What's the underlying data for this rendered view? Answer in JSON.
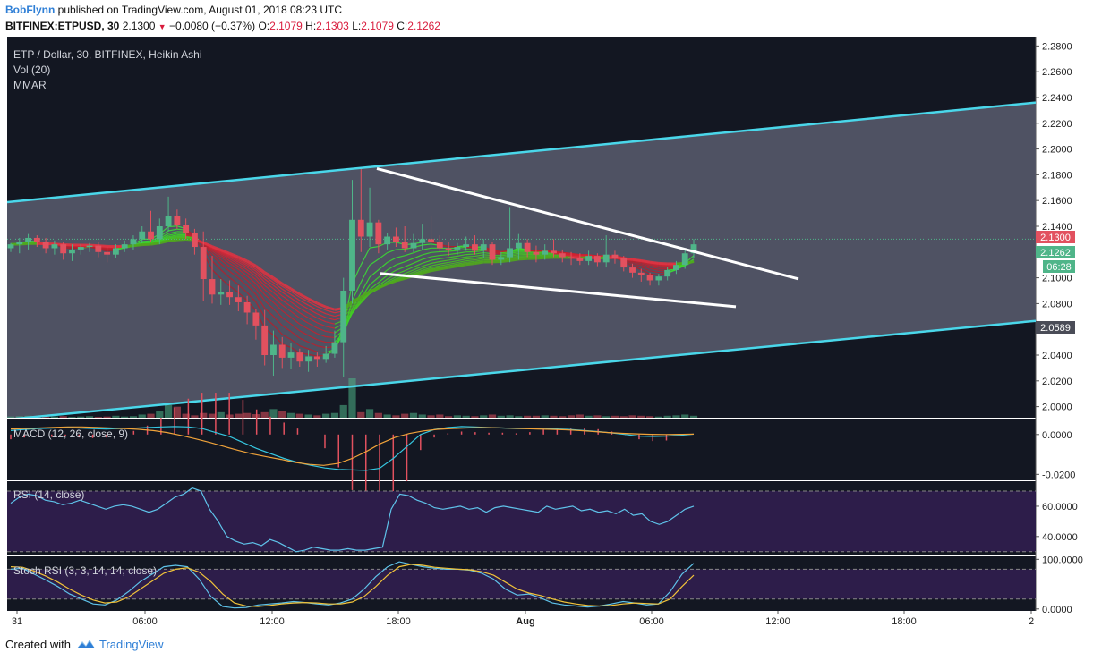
{
  "header": {
    "author": "BobFlynn",
    "published_text": "published on TradingView.com, August 01, 2018 08:23 UTC",
    "symbol_line": "BITFINEX:ETPUSD, 30",
    "last": "2.1300",
    "change": "−0.0080 (−0.37%)",
    "o_label": "O:",
    "o": "2.1079",
    "h_label": "H:",
    "h": "2.1303",
    "l_label": "L:",
    "l": "2.1079",
    "c_label": "C:",
    "c": "2.1262"
  },
  "legend": {
    "main": "ETP / Dollar, 30, BITFINEX, Heikin Ashi",
    "vol": "Vol (20)",
    "mmar": "MMAR",
    "macd": "MACD (12, 26, close, 9)",
    "rsi": "RSI (14, close)",
    "stoch": "Stoch RSI (3, 3, 14, 14, close)"
  },
  "price_badges": {
    "last": "2.1300",
    "close": "2.1262",
    "countdown": "06:28",
    "low": "2.0589"
  },
  "footer": {
    "created_with": "Created with",
    "brand": "TradingView"
  },
  "colors": {
    "bg": "#131722",
    "channel": "#4ad7ea",
    "channel_fill": "#5b5d6e",
    "up": "#4fb589",
    "down": "#e2515f",
    "trend": "#ffffff",
    "macd": "#36c6df",
    "signal": "#f0a33a",
    "rsi": "#5fc3ea",
    "stoch_k": "#5fc3ea",
    "stoch_d": "#f0c23a",
    "rsi_band": "#2d1d4a"
  },
  "chart_data": [
    {
      "type": "candlestick",
      "title": "ETP / Dollar, 30, BITFINEX, Heikin Ashi",
      "x_tick_labels": [
        "31",
        "06:00",
        "12:00",
        "18:00",
        "Aug",
        "06:00",
        "12:00",
        "18:00",
        "2"
      ],
      "y_tick_labels": [
        "2.0000",
        "2.0200",
        "2.0400",
        "2.0800",
        "2.1000",
        "2.1400",
        "2.1600",
        "2.1800",
        "2.2000",
        "2.2200",
        "2.2400",
        "2.2600",
        "2.2800"
      ],
      "ylim": [
        1.9914,
        2.2872
      ],
      "candles": [
        [
          2.123,
          2.127,
          2.12,
          2.126
        ],
        [
          2.126,
          2.131,
          2.119,
          2.128
        ],
        [
          2.128,
          2.134,
          2.122,
          2.131
        ],
        [
          2.131,
          2.133,
          2.124,
          2.128
        ],
        [
          2.128,
          2.131,
          2.119,
          2.123
        ],
        [
          2.123,
          2.129,
          2.118,
          2.126
        ],
        [
          2.126,
          2.128,
          2.114,
          2.119
        ],
        [
          2.119,
          2.126,
          2.113,
          2.122
        ],
        [
          2.122,
          2.126,
          2.118,
          2.124
        ],
        [
          2.124,
          2.127,
          2.12,
          2.125
        ],
        [
          2.125,
          2.128,
          2.116,
          2.12
        ],
        [
          2.12,
          2.124,
          2.112,
          2.118
        ],
        [
          2.118,
          2.126,
          2.115,
          2.123
        ],
        [
          2.123,
          2.129,
          2.12,
          2.126
        ],
        [
          2.126,
          2.133,
          2.122,
          2.13
        ],
        [
          2.13,
          2.14,
          2.127,
          2.136
        ],
        [
          2.136,
          2.152,
          2.128,
          2.13
        ],
        [
          2.13,
          2.146,
          2.126,
          2.14
        ],
        [
          2.14,
          2.163,
          2.136,
          2.148
        ],
        [
          2.148,
          2.153,
          2.138,
          2.141
        ],
        [
          2.141,
          2.146,
          2.13,
          2.135
        ],
        [
          2.135,
          2.138,
          2.118,
          2.124
        ],
        [
          2.124,
          2.136,
          2.082,
          2.099
        ],
        [
          2.099,
          2.117,
          2.08,
          2.087
        ],
        [
          2.087,
          2.099,
          2.079,
          2.089
        ],
        [
          2.089,
          2.098,
          2.079,
          2.085
        ],
        [
          2.085,
          2.094,
          2.074,
          2.081
        ],
        [
          2.081,
          2.086,
          2.064,
          2.073
        ],
        [
          2.073,
          2.076,
          2.052,
          2.063
        ],
        [
          2.063,
          2.075,
          2.032,
          2.04
        ],
        [
          2.04,
          2.059,
          2.024,
          2.048
        ],
        [
          2.048,
          2.054,
          2.03,
          2.038
        ],
        [
          2.038,
          2.049,
          2.029,
          2.042
        ],
        [
          2.042,
          2.045,
          2.031,
          2.035
        ],
        [
          2.035,
          2.044,
          2.027,
          2.039
        ],
        [
          2.039,
          2.042,
          2.031,
          2.037
        ],
        [
          2.037,
          2.047,
          2.034,
          2.041
        ],
        [
          2.041,
          2.059,
          2.038,
          2.05
        ],
        [
          2.05,
          2.1,
          2.023,
          2.09
        ],
        [
          2.09,
          2.176,
          2.08,
          2.145
        ],
        [
          2.145,
          2.185,
          2.12,
          2.132
        ],
        [
          2.132,
          2.17,
          2.124,
          2.143
        ],
        [
          2.143,
          2.145,
          2.119,
          2.126
        ],
        [
          2.126,
          2.135,
          2.122,
          2.132
        ],
        [
          2.132,
          2.139,
          2.124,
          2.128
        ],
        [
          2.128,
          2.14,
          2.12,
          2.123
        ],
        [
          2.123,
          2.134,
          2.12,
          2.127
        ],
        [
          2.127,
          2.142,
          2.122,
          2.13
        ],
        [
          2.13,
          2.148,
          2.124,
          2.128
        ],
        [
          2.128,
          2.133,
          2.12,
          2.123
        ],
        [
          2.123,
          2.128,
          2.117,
          2.122
        ],
        [
          2.122,
          2.127,
          2.118,
          2.124
        ],
        [
          2.124,
          2.132,
          2.121,
          2.126
        ],
        [
          2.126,
          2.133,
          2.118,
          2.121
        ],
        [
          2.121,
          2.13,
          2.115,
          2.126
        ],
        [
          2.126,
          2.128,
          2.11,
          2.114
        ],
        [
          2.114,
          2.12,
          2.11,
          2.116
        ],
        [
          2.116,
          2.155,
          2.112,
          2.123
        ],
        [
          2.123,
          2.134,
          2.114,
          2.127
        ],
        [
          2.127,
          2.13,
          2.116,
          2.12
        ],
        [
          2.12,
          2.125,
          2.112,
          2.118
        ],
        [
          2.118,
          2.126,
          2.114,
          2.121
        ],
        [
          2.121,
          2.13,
          2.116,
          2.119
        ],
        [
          2.119,
          2.122,
          2.112,
          2.116
        ],
        [
          2.116,
          2.12,
          2.11,
          2.115
        ],
        [
          2.115,
          2.119,
          2.11,
          2.113
        ],
        [
          2.113,
          2.121,
          2.11,
          2.117
        ],
        [
          2.117,
          2.119,
          2.109,
          2.112
        ],
        [
          2.112,
          2.133,
          2.108,
          2.118
        ],
        [
          2.118,
          2.121,
          2.111,
          2.115
        ],
        [
          2.115,
          2.117,
          2.105,
          2.108
        ],
        [
          2.108,
          2.111,
          2.1,
          2.104
        ],
        [
          2.104,
          2.107,
          2.097,
          2.102
        ],
        [
          2.102,
          2.104,
          2.094,
          2.098
        ],
        [
          2.098,
          2.103,
          2.094,
          2.101
        ],
        [
          2.101,
          2.108,
          2.098,
          2.106
        ],
        [
          2.106,
          2.113,
          2.103,
          2.11
        ],
        [
          2.11,
          2.122,
          2.107,
          2.119
        ],
        [
          2.119,
          2.13,
          2.115,
          2.126
        ]
      ],
      "volume": [
        3,
        4,
        5,
        3,
        2,
        3,
        4,
        2,
        3,
        4,
        2,
        3,
        5,
        3,
        4,
        8,
        10,
        16,
        32,
        28,
        10,
        6,
        12,
        10,
        14,
        8,
        10,
        12,
        9,
        14,
        22,
        18,
        12,
        10,
        8,
        6,
        10,
        12,
        32,
        100,
        14,
        22,
        12,
        8,
        6,
        10,
        12,
        8,
        6,
        8,
        4,
        6,
        5,
        4,
        6,
        8,
        5,
        6,
        4,
        5,
        5,
        6,
        5,
        4,
        6,
        8,
        5,
        6,
        4,
        5,
        4,
        6,
        5,
        4,
        3,
        5,
        6,
        8,
        5
      ],
      "channel_top": [
        [
          2.1587,
          2.2361
        ]
      ],
      "channel_bottom": [
        [
          1.99,
          2.0666
        ]
      ],
      "wedge_upper": [
        2.1848,
        2.0991
      ],
      "wedge_lower": [
        2.1034,
        2.0776
      ]
    },
    {
      "type": "line",
      "title": "MACD (12, 26, close, 9)",
      "y_tick_labels": [
        "0.0000",
        "-0.0200"
      ],
      "ylim": [
        -0.023,
        0.008
      ],
      "series": [
        {
          "name": "MACD",
          "values": [
            0.002,
            0.0025,
            0.003,
            0.0032,
            0.0035,
            0.0033,
            0.003,
            0.0028,
            0.003,
            0.0032,
            0.0035,
            0.0038,
            0.004,
            0.0038,
            0.003,
            0.001,
            -0.001,
            -0.004,
            -0.007,
            -0.0095,
            -0.012,
            -0.014,
            -0.0155,
            -0.0168,
            -0.0175,
            -0.0178,
            -0.018,
            -0.017,
            -0.012,
            -0.006,
            0.0,
            0.0025,
            0.0035,
            0.004,
            0.0038,
            0.0035,
            0.0033,
            0.003,
            0.003,
            0.0032,
            0.0028,
            0.0025,
            0.002,
            0.0015,
            0.0008,
            0.0,
            -0.0008,
            -0.001,
            -0.0008,
            -0.0004,
            0.0002
          ]
        },
        {
          "name": "Signal",
          "values": [
            0.0028,
            0.003,
            0.0033,
            0.0036,
            0.0038,
            0.0038,
            0.0036,
            0.0033,
            0.003,
            0.0026,
            0.002,
            0.001,
            -0.0005,
            -0.0022,
            -0.004,
            -0.006,
            -0.008,
            -0.0098,
            -0.0112,
            -0.0125,
            -0.014,
            -0.015,
            -0.0155,
            -0.0145,
            -0.012,
            -0.0085,
            -0.0045,
            -0.0015,
            0.0005,
            0.0018,
            0.0026,
            0.003,
            0.0033,
            0.0035,
            0.0034,
            0.0032,
            0.003,
            0.0028,
            0.0026,
            0.0024,
            0.002,
            0.0015,
            0.001,
            0.0006,
            0.0003,
            0.0001,
            0.0,
            0.0001,
            0.0002
          ]
        }
      ]
    },
    {
      "type": "line",
      "title": "RSI (14, close)",
      "y_tick_labels": [
        "60.0000",
        "40.0000"
      ],
      "ylim": [
        27.5,
        76.5
      ],
      "bands": [
        70,
        30
      ],
      "series": [
        {
          "name": "RSI",
          "values": [
            62,
            66,
            68,
            67,
            64,
            63,
            61,
            62,
            64,
            62,
            60,
            58,
            60,
            61,
            60,
            58,
            56,
            58,
            62,
            66,
            68,
            72,
            70,
            58,
            50,
            40,
            37,
            35,
            36,
            34,
            38,
            36,
            33,
            30,
            31,
            33,
            32,
            31,
            31,
            32,
            31,
            31,
            32,
            33,
            58,
            68,
            67,
            64,
            62,
            59,
            58,
            59,
            60,
            58,
            59,
            56,
            59,
            60,
            59,
            58,
            57,
            56,
            60,
            58,
            59,
            60,
            57,
            58,
            56,
            57,
            55,
            58,
            54,
            55,
            50,
            48,
            50,
            54,
            58,
            60
          ]
        }
      ]
    },
    {
      "type": "line",
      "title": "Stoch RSI (3, 3, 14, 14, close)",
      "y_tick_labels": [
        "100.0000",
        "0.0000"
      ],
      "ylim": [
        -4,
        106
      ],
      "bands": [
        80,
        20
      ],
      "series": [
        {
          "name": "K",
          "values": [
            80,
            82,
            70,
            58,
            45,
            30,
            20,
            10,
            8,
            18,
            35,
            55,
            70,
            85,
            88,
            85,
            60,
            25,
            5,
            2,
            3,
            8,
            10,
            12,
            15,
            13,
            10,
            8,
            12,
            20,
            40,
            65,
            85,
            95,
            90,
            85,
            82,
            80,
            80,
            78,
            72,
            60,
            40,
            28,
            30,
            22,
            12,
            8,
            6,
            4,
            6,
            10,
            15,
            12,
            8,
            10,
            35,
            70,
            92
          ]
        },
        {
          "name": "D",
          "values": [
            85,
            84,
            76,
            66,
            54,
            40,
            28,
            18,
            12,
            14,
            24,
            40,
            56,
            72,
            80,
            83,
            74,
            55,
            30,
            12,
            6,
            5,
            7,
            10,
            12,
            13,
            12,
            10,
            10,
            14,
            25,
            45,
            68,
            85,
            90,
            88,
            84,
            82,
            80,
            79,
            75,
            68,
            54,
            40,
            32,
            27,
            20,
            14,
            10,
            7,
            6,
            7,
            10,
            12,
            11,
            10,
            20,
            45,
            68
          ]
        }
      ]
    }
  ]
}
